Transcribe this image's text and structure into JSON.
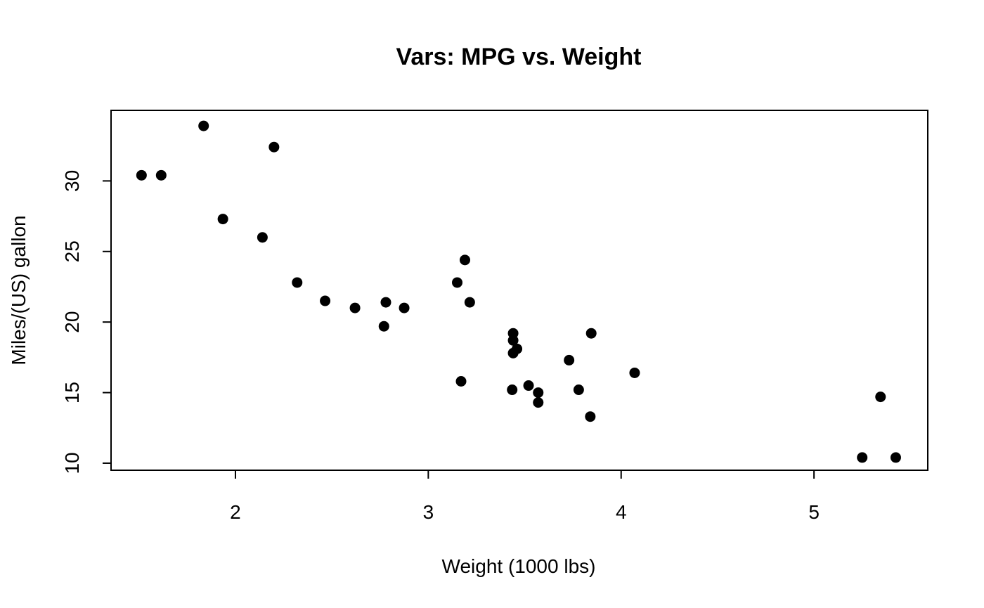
{
  "chart_data": {
    "type": "scatter",
    "title": "Vars: MPG vs. Weight",
    "xlabel": "Weight (1000 lbs)",
    "ylabel": "Miles/(US) gallon",
    "xlim": [
      1.355,
      5.59
    ],
    "ylim": [
      9.5,
      35.0
    ],
    "xticks": [
      2,
      3,
      4,
      5
    ],
    "yticks": [
      10,
      15,
      20,
      25,
      30
    ],
    "grid": false,
    "legend": "none",
    "marker_color": "#000000",
    "points": [
      {
        "x": 2.62,
        "y": 21.0
      },
      {
        "x": 2.875,
        "y": 21.0
      },
      {
        "x": 2.32,
        "y": 22.8
      },
      {
        "x": 3.215,
        "y": 21.4
      },
      {
        "x": 3.44,
        "y": 18.7
      },
      {
        "x": 3.46,
        "y": 18.1
      },
      {
        "x": 3.57,
        "y": 14.3
      },
      {
        "x": 3.19,
        "y": 24.4
      },
      {
        "x": 3.15,
        "y": 22.8
      },
      {
        "x": 3.44,
        "y": 19.2
      },
      {
        "x": 3.44,
        "y": 17.8
      },
      {
        "x": 4.07,
        "y": 16.4
      },
      {
        "x": 3.73,
        "y": 17.3
      },
      {
        "x": 3.78,
        "y": 15.2
      },
      {
        "x": 5.25,
        "y": 10.4
      },
      {
        "x": 5.424,
        "y": 10.4
      },
      {
        "x": 5.345,
        "y": 14.7
      },
      {
        "x": 2.2,
        "y": 32.4
      },
      {
        "x": 1.615,
        "y": 30.4
      },
      {
        "x": 1.835,
        "y": 33.9
      },
      {
        "x": 2.465,
        "y": 21.5
      },
      {
        "x": 3.52,
        "y": 15.5
      },
      {
        "x": 3.435,
        "y": 15.2
      },
      {
        "x": 3.84,
        "y": 13.3
      },
      {
        "x": 3.845,
        "y": 19.2
      },
      {
        "x": 1.935,
        "y": 27.3
      },
      {
        "x": 2.14,
        "y": 26.0
      },
      {
        "x": 1.513,
        "y": 30.4
      },
      {
        "x": 3.17,
        "y": 15.8
      },
      {
        "x": 2.77,
        "y": 19.7
      },
      {
        "x": 3.57,
        "y": 15.0
      },
      {
        "x": 2.78,
        "y": 21.4
      }
    ]
  }
}
